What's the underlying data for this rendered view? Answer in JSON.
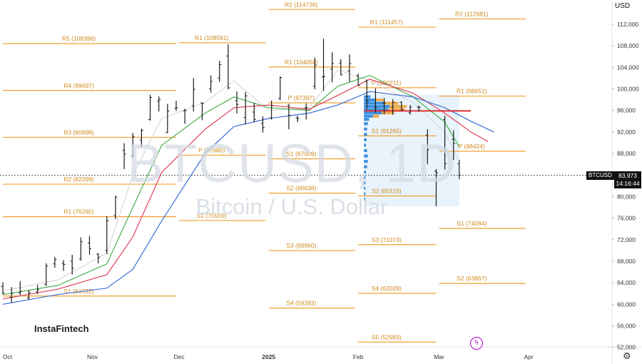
{
  "symbol": {
    "title": "BTCUSD, 1D",
    "description": "Bitcoin / U.S. Dollar"
  },
  "brand": "InstaFintech",
  "currency": "USD",
  "last_price": {
    "symbol": "BTCUSD",
    "value": "83,973",
    "countdown": "14:16:44"
  },
  "colors": {
    "up": "#1a1a1a",
    "pivot": "#f0a030",
    "pivot_text": "#d08a1c",
    "ema_fast": "#d9d9d9",
    "ema_green": "#4caf50",
    "ema_red": "#e0405a",
    "ema_blue": "#3a6fd8",
    "poc": "#e03030",
    "profile": "#3b8fe0",
    "profile_poc": "#f0a030",
    "range_box": "#d8ebfa"
  },
  "chart_data": {
    "type": "candlestick",
    "title": "BTCUSD, 1D",
    "subtitle": "Bitcoin / U.S. Dollar",
    "y_axis": {
      "ticks": [
        52000,
        56000,
        60000,
        64000,
        68000,
        72000,
        76000,
        80000,
        84000,
        88000,
        92000,
        96000,
        100000,
        104000,
        108000,
        112000
      ],
      "tick_labels": [
        "52,000",
        "56,000",
        "60,000",
        "64,000",
        "68,000",
        "72,000",
        "76,000",
        "80,000",
        "84,000",
        "88,000",
        "92,000",
        "96,000",
        "100,000",
        "104,000",
        "108,000",
        "112,000"
      ],
      "range": [
        50500,
        116500
      ]
    },
    "x_axis": {
      "labels": [
        "Oct",
        "Nov",
        "Dec",
        "2025",
        "Feb",
        "Mar",
        "Apr"
      ],
      "dates": [
        "2024-10-01",
        "2024-11-01",
        "2024-12-01",
        "2025-01-01",
        "2025-02-01",
        "2025-03-01",
        "2025-04-01"
      ],
      "range": [
        "2024-10-01",
        "2025-04-20"
      ]
    },
    "last_price": 83973,
    "pivot_levels": [
      {
        "label": "R5 (108396)",
        "value": 108396,
        "from": "2024-10-01",
        "to": "2024-11-30"
      },
      {
        "label": "R4 (99697)",
        "value": 99697,
        "from": "2024-10-01",
        "to": "2024-11-30"
      },
      {
        "label": "R3 (90998)",
        "value": 90998,
        "from": "2024-10-01",
        "to": "2024-11-30"
      },
      {
        "label": "R2 (82299)",
        "value": 82299,
        "from": "2024-10-01",
        "to": "2024-11-30"
      },
      {
        "label": "R1 (76265)",
        "value": 76265,
        "from": "2024-10-01",
        "to": "2024-11-30"
      },
      {
        "label": "S1 (61532)",
        "value": 61532,
        "from": "2024-10-01",
        "to": "2024-11-30"
      },
      {
        "label": "R1 (108561)",
        "value": 108561,
        "from": "2024-12-01",
        "to": "2024-12-31"
      },
      {
        "label": "P (87680)",
        "value": 87680,
        "from": "2024-12-01",
        "to": "2024-12-31"
      },
      {
        "label": "S1 (75559)",
        "value": 75559,
        "from": "2024-12-01",
        "to": "2024-12-31"
      },
      {
        "label": "R2 (114736)",
        "value": 114736,
        "from": "2025-01-01",
        "to": "2025-01-31"
      },
      {
        "label": "R1 (104058)",
        "value": 104058,
        "from": "2025-01-01",
        "to": "2025-01-31"
      },
      {
        "label": "P (97397)",
        "value": 97397,
        "from": "2025-01-01",
        "to": "2025-01-31"
      },
      {
        "label": "S1 (87009)",
        "value": 87009,
        "from": "2025-01-01",
        "to": "2025-01-31"
      },
      {
        "label": "S2 (80638)",
        "value": 80638,
        "from": "2025-01-01",
        "to": "2025-01-31"
      },
      {
        "label": "S3 (69960)",
        "value": 69960,
        "from": "2025-01-01",
        "to": "2025-01-31"
      },
      {
        "label": "S4 (59283)",
        "value": 59283,
        "from": "2025-01-01",
        "to": "2025-01-31"
      },
      {
        "label": "R1 (111457)",
        "value": 111457,
        "from": "2025-02-01",
        "to": "2025-02-28"
      },
      {
        "label": "P (100211)",
        "value": 100211,
        "from": "2025-02-01",
        "to": "2025-02-28"
      },
      {
        "label": "S1 (91265)",
        "value": 91265,
        "from": "2025-02-01",
        "to": "2025-02-28"
      },
      {
        "label": "S2 (80119)",
        "value": 80119,
        "from": "2025-02-01",
        "to": "2025-02-28"
      },
      {
        "label": "S3 (71073)",
        "value": 71073,
        "from": "2025-02-01",
        "to": "2025-02-28"
      },
      {
        "label": "S4 (62028)",
        "value": 62028,
        "from": "2025-02-01",
        "to": "2025-02-28"
      },
      {
        "label": "S5 (52983)",
        "value": 52983,
        "from": "2025-02-01",
        "to": "2025-02-28"
      },
      {
        "label": "R2 (112981)",
        "value": 112981,
        "from": "2025-03-01",
        "to": "2025-03-31"
      },
      {
        "label": "R1 (98651)",
        "value": 98651,
        "from": "2025-03-01",
        "to": "2025-03-31"
      },
      {
        "label": "P (88424)",
        "value": 88424,
        "from": "2025-03-01",
        "to": "2025-03-31"
      },
      {
        "label": "S1 (74094)",
        "value": 74094,
        "from": "2025-03-01",
        "to": "2025-03-31"
      },
      {
        "label": "S2 (63867)",
        "value": 63867,
        "from": "2025-03-01",
        "to": "2025-03-31"
      }
    ],
    "candles": [
      {
        "x": "2024-10-01",
        "o": 63300,
        "h": 64100,
        "l": 61800,
        "c": 62100
      },
      {
        "x": "2024-10-04",
        "o": 61300,
        "h": 63200,
        "l": 60300,
        "c": 62000
      },
      {
        "x": "2024-10-07",
        "o": 62100,
        "h": 64300,
        "l": 61700,
        "c": 62400
      },
      {
        "x": "2024-10-10",
        "o": 61200,
        "h": 62600,
        "l": 60800,
        "c": 62100
      },
      {
        "x": "2024-10-13",
        "o": 62300,
        "h": 63600,
        "l": 61900,
        "c": 62700
      },
      {
        "x": "2024-10-16",
        "o": 63700,
        "h": 67600,
        "l": 63400,
        "c": 67100
      },
      {
        "x": "2024-10-19",
        "o": 67500,
        "h": 68800,
        "l": 66800,
        "c": 68300
      },
      {
        "x": "2024-10-22",
        "o": 67600,
        "h": 68200,
        "l": 66200,
        "c": 67400
      },
      {
        "x": "2024-10-25",
        "o": 68000,
        "h": 69200,
        "l": 65500,
        "c": 66700
      },
      {
        "x": "2024-10-28",
        "o": 68400,
        "h": 72400,
        "l": 68100,
        "c": 71600
      },
      {
        "x": "2024-10-31",
        "o": 71400,
        "h": 72700,
        "l": 69200,
        "c": 70300
      },
      {
        "x": "2024-11-03",
        "o": 69300,
        "h": 69500,
        "l": 67600,
        "c": 68700
      },
      {
        "x": "2024-11-06",
        "o": 70000,
        "h": 76400,
        "l": 69300,
        "c": 75500
      },
      {
        "x": "2024-11-09",
        "o": 76500,
        "h": 80200,
        "l": 75800,
        "c": 79900
      },
      {
        "x": "2024-11-12",
        "o": 88600,
        "h": 89900,
        "l": 85100,
        "c": 87900
      },
      {
        "x": "2024-11-15",
        "o": 87500,
        "h": 91800,
        "l": 87200,
        "c": 91100
      },
      {
        "x": "2024-11-18",
        "o": 90500,
        "h": 92600,
        "l": 89200,
        "c": 92300
      },
      {
        "x": "2024-11-21",
        "o": 94300,
        "h": 98900,
        "l": 94100,
        "c": 98400
      },
      {
        "x": "2024-11-24",
        "o": 97700,
        "h": 98600,
        "l": 95800,
        "c": 98000
      },
      {
        "x": "2024-11-27",
        "o": 91900,
        "h": 97200,
        "l": 91800,
        "c": 95900
      },
      {
        "x": "2024-11-30",
        "o": 96400,
        "h": 97800,
        "l": 95900,
        "c": 96500
      },
      {
        "x": "2024-12-03",
        "o": 95900,
        "h": 96300,
        "l": 93500,
        "c": 96000
      },
      {
        "x": "2024-12-06",
        "o": 96900,
        "h": 102000,
        "l": 95800,
        "c": 99900
      },
      {
        "x": "2024-12-09",
        "o": 97400,
        "h": 97500,
        "l": 94200,
        "c": 97300
      },
      {
        "x": "2024-12-12",
        "o": 100000,
        "h": 102500,
        "l": 99300,
        "c": 101400
      },
      {
        "x": "2024-12-15",
        "o": 102000,
        "h": 105200,
        "l": 101300,
        "c": 104500
      },
      {
        "x": "2024-12-18",
        "o": 106100,
        "h": 108300,
        "l": 99900,
        "c": 100200
      },
      {
        "x": "2024-12-21",
        "o": 97800,
        "h": 99500,
        "l": 95400,
        "c": 97100
      },
      {
        "x": "2024-12-24",
        "o": 94700,
        "h": 99400,
        "l": 93400,
        "c": 98700
      },
      {
        "x": "2024-12-27",
        "o": 95700,
        "h": 97400,
        "l": 93800,
        "c": 94300
      },
      {
        "x": "2024-12-30",
        "o": 93600,
        "h": 94900,
        "l": 91900,
        "c": 92800
      },
      {
        "x": "2025-01-02",
        "o": 94600,
        "h": 97800,
        "l": 94300,
        "c": 96900
      },
      {
        "x": "2025-01-05",
        "o": 98200,
        "h": 102300,
        "l": 97900,
        "c": 102100
      },
      {
        "x": "2025-01-08",
        "o": 96900,
        "h": 97200,
        "l": 92500,
        "c": 95100
      },
      {
        "x": "2025-01-11",
        "o": 94600,
        "h": 95000,
        "l": 93800,
        "c": 94500
      },
      {
        "x": "2025-01-14",
        "o": 96500,
        "h": 97300,
        "l": 94300,
        "c": 96500
      },
      {
        "x": "2025-01-17",
        "o": 100500,
        "h": 105800,
        "l": 99900,
        "c": 104400
      },
      {
        "x": "2025-01-20",
        "o": 102200,
        "h": 109300,
        "l": 99600,
        "c": 102300
      },
      {
        "x": "2025-01-23",
        "o": 103700,
        "h": 106800,
        "l": 101200,
        "c": 104700
      },
      {
        "x": "2025-01-26",
        "o": 104800,
        "h": 105500,
        "l": 102500,
        "c": 102600
      },
      {
        "x": "2025-01-29",
        "o": 103300,
        "h": 106400,
        "l": 101300,
        "c": 104700
      },
      {
        "x": "2025-02-01",
        "o": 102400,
        "h": 102800,
        "l": 100600,
        "c": 100600
      },
      {
        "x": "2025-02-04",
        "o": 101400,
        "h": 101700,
        "l": 96200,
        "c": 97700
      },
      {
        "x": "2025-02-07",
        "o": 96600,
        "h": 100100,
        "l": 95600,
        "c": 96500
      },
      {
        "x": "2025-02-10",
        "o": 97400,
        "h": 98300,
        "l": 95300,
        "c": 97400
      },
      {
        "x": "2025-02-13",
        "o": 96600,
        "h": 98100,
        "l": 95200,
        "c": 97500
      },
      {
        "x": "2025-02-16",
        "o": 97500,
        "h": 97700,
        "l": 95900,
        "c": 96100
      },
      {
        "x": "2025-02-19",
        "o": 95600,
        "h": 97000,
        "l": 95200,
        "c": 96600
      },
      {
        "x": "2025-02-22",
        "o": 96600,
        "h": 96900,
        "l": 95800,
        "c": 96600
      },
      {
        "x": "2025-02-25",
        "o": 91400,
        "h": 92500,
        "l": 86000,
        "c": 88700
      },
      {
        "x": "2025-02-28",
        "o": 84700,
        "h": 85100,
        "l": 78200,
        "c": 84400
      },
      {
        "x": "2025-03-03",
        "o": 94300,
        "h": 95000,
        "l": 85000,
        "c": 86100
      },
      {
        "x": "2025-03-06",
        "o": 90600,
        "h": 92300,
        "l": 86800,
        "c": 89900
      },
      {
        "x": "2025-03-08",
        "o": 86100,
        "h": 86800,
        "l": 83200,
        "c": 83973
      }
    ],
    "moving_averages": [
      {
        "name": "MA grey",
        "color": "#d9d9d9",
        "points": [
          [
            "2024-10-01",
            62500
          ],
          [
            "2024-10-20",
            64500
          ],
          [
            "2024-11-06",
            69500
          ],
          [
            "2024-11-15",
            84000
          ],
          [
            "2024-11-25",
            94500
          ],
          [
            "2024-12-10",
            97500
          ],
          [
            "2024-12-20",
            101500
          ],
          [
            "2025-01-01",
            96000
          ],
          [
            "2025-01-15",
            96500
          ],
          [
            "2025-01-25",
            103500
          ],
          [
            "2025-02-05",
            101500
          ],
          [
            "2025-02-20",
            97500
          ],
          [
            "2025-03-03",
            92000
          ],
          [
            "2025-03-08",
            86500
          ]
        ]
      },
      {
        "name": "MA green",
        "color": "#4caf50",
        "points": [
          [
            "2024-10-01",
            61800
          ],
          [
            "2024-10-20",
            63500
          ],
          [
            "2024-11-06",
            67500
          ],
          [
            "2024-11-15",
            78000
          ],
          [
            "2024-11-25",
            89500
          ],
          [
            "2024-12-10",
            95500
          ],
          [
            "2024-12-20",
            98500
          ],
          [
            "2025-01-01",
            96500
          ],
          [
            "2025-01-15",
            96000
          ],
          [
            "2025-01-25",
            100500
          ],
          [
            "2025-02-05",
            102500
          ],
          [
            "2025-02-20",
            98500
          ],
          [
            "2025-03-03",
            93800
          ],
          [
            "2025-03-08",
            89200
          ]
        ]
      },
      {
        "name": "MA red",
        "color": "#e0405a",
        "points": [
          [
            "2024-10-01",
            61000
          ],
          [
            "2024-10-20",
            62800
          ],
          [
            "2024-11-06",
            65500
          ],
          [
            "2024-11-15",
            72500
          ],
          [
            "2024-11-25",
            84500
          ],
          [
            "2024-12-10",
            92500
          ],
          [
            "2024-12-20",
            96500
          ],
          [
            "2025-01-01",
            97000
          ],
          [
            "2025-01-15",
            96200
          ],
          [
            "2025-01-25",
            98800
          ],
          [
            "2025-02-05",
            101800
          ],
          [
            "2025-02-20",
            99200
          ],
          [
            "2025-03-03",
            95500
          ],
          [
            "2025-03-12",
            92000
          ],
          [
            "2025-03-18",
            90200
          ]
        ]
      },
      {
        "name": "MA blue",
        "color": "#3a6fd8",
        "points": [
          [
            "2024-10-01",
            60000
          ],
          [
            "2024-10-20",
            61800
          ],
          [
            "2024-11-06",
            63000
          ],
          [
            "2024-11-15",
            66500
          ],
          [
            "2024-11-25",
            75500
          ],
          [
            "2024-12-10",
            88000
          ],
          [
            "2024-12-20",
            93000
          ],
          [
            "2025-01-01",
            94500
          ],
          [
            "2025-01-15",
            95500
          ],
          [
            "2025-01-25",
            97000
          ],
          [
            "2025-02-05",
            99500
          ],
          [
            "2025-02-20",
            98500
          ],
          [
            "2025-03-03",
            96500
          ],
          [
            "2025-03-12",
            94000
          ],
          [
            "2025-03-20",
            92000
          ]
        ]
      }
    ],
    "volume_profile": {
      "date_range": [
        "2025-02-03",
        "2025-03-08"
      ],
      "price_range": [
        78200,
        98900
      ],
      "poc": 95900,
      "bins": [
        {
          "price": 98500,
          "size": 0.25
        },
        {
          "price": 97900,
          "size": 0.45
        },
        {
          "price": 97300,
          "size": 0.8
        },
        {
          "price": 96700,
          "size": 1.0
        },
        {
          "price": 96100,
          "size": 0.95
        },
        {
          "price": 95500,
          "size": 0.7
        },
        {
          "price": 94900,
          "size": 0.35
        },
        {
          "price": 94300,
          "size": 0.2
        },
        {
          "price": 93500,
          "size": 0.15
        },
        {
          "price": 92500,
          "size": 0.12
        },
        {
          "price": 91500,
          "size": 0.12
        },
        {
          "price": 90500,
          "size": 0.1
        },
        {
          "price": 89500,
          "size": 0.08
        },
        {
          "price": 88500,
          "size": 0.12
        },
        {
          "price": 87500,
          "size": 0.15
        },
        {
          "price": 86500,
          "size": 0.15
        },
        {
          "price": 85500,
          "size": 0.12
        },
        {
          "price": 84500,
          "size": 0.08
        },
        {
          "price": 83500,
          "size": 0.06
        },
        {
          "price": 82500,
          "size": 0.05
        },
        {
          "price": 81500,
          "size": 0.04
        },
        {
          "price": 80500,
          "size": 0.04
        },
        {
          "price": 79500,
          "size": 0.03
        }
      ]
    }
  }
}
